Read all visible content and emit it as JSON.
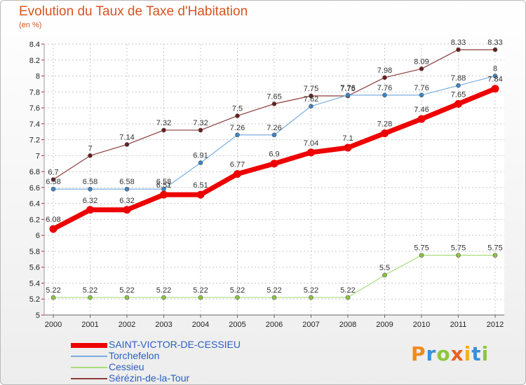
{
  "title": "Evolution du Taux de Taxe d'Habitation",
  "unit": "(en %)",
  "brand": {
    "letters": [
      "P",
      "r",
      "o",
      "x",
      "i",
      "t",
      "i"
    ],
    "colors": [
      "#f08a1c",
      "#3d8fd6",
      "#8cc63f",
      "#e8621d",
      "#f2b21c",
      "#3d8fd6",
      "#8cc63f"
    ]
  },
  "chart_data": {
    "type": "line",
    "x": [
      2000,
      2001,
      2002,
      2003,
      2004,
      2005,
      2006,
      2007,
      2008,
      2009,
      2010,
      2011,
      2012
    ],
    "ylim": [
      5,
      8.4
    ],
    "yticks": [
      5,
      5.2,
      5.4,
      5.6,
      5.8,
      6,
      6.2,
      6.4,
      6.6,
      6.8,
      7,
      7.2,
      7.4,
      7.6,
      7.8,
      8,
      8.2,
      8.4
    ],
    "grid": true,
    "legend": "bottom-left",
    "series": [
      {
        "name": "Sérézin-de-la-Tour",
        "color": "#8c3b3b",
        "marker": "#6b1e1e",
        "width": 1.2,
        "values": [
          6.7,
          7,
          7.14,
          7.32,
          7.32,
          7.5,
          7.65,
          7.75,
          7.75,
          7.98,
          8.09,
          8.33,
          8.33
        ],
        "labels": [
          "6.7",
          "7",
          "7.14",
          "7.32",
          "7.32",
          "7.5",
          "7.65",
          "7.75",
          "7.75",
          "7.98",
          "8.09",
          "8.33",
          "8.33"
        ]
      },
      {
        "name": "Torchefelon",
        "color": "#7aaee0",
        "marker": "#3d85c6",
        "width": 1.2,
        "values": [
          6.58,
          6.58,
          6.58,
          6.58,
          6.91,
          7.26,
          7.26,
          7.62,
          7.76,
          7.76,
          7.76,
          7.88,
          8
        ],
        "labels": [
          "6.58",
          "6.58",
          "6.58",
          "6.58",
          "6.91",
          "7.26",
          "7.26",
          "7.62",
          "7.76",
          "7.76",
          "7.76",
          "7.88",
          "8"
        ]
      },
      {
        "name": "Cessieu",
        "color": "#a8dc7a",
        "marker": "#8cc63f",
        "width": 1.2,
        "values": [
          5.22,
          5.22,
          5.22,
          5.22,
          5.22,
          5.22,
          5.22,
          5.22,
          5.22,
          5.5,
          5.75,
          5.75,
          5.75
        ],
        "labels": [
          "5.22",
          "5.22",
          "5.22",
          "5.22",
          "5.22",
          "5.22",
          "5.22",
          "5.22",
          "5.22",
          "5.5",
          "5.75",
          "5.75",
          "5.75"
        ]
      },
      {
        "name": "SAINT-VICTOR-DE-CESSIEU",
        "color": "#ee0000",
        "marker": "#ee0000",
        "width": 7,
        "values": [
          6.08,
          6.32,
          6.32,
          6.51,
          6.51,
          6.77,
          6.9,
          7.04,
          7.1,
          7.28,
          7.46,
          7.65,
          7.84
        ],
        "labels": [
          "6.08",
          "6.32",
          "6.32",
          "6.51",
          "6.51",
          "6.77",
          "6.9",
          "7.04",
          "7.1",
          "7.28",
          "7.46",
          "7.65",
          "7.84"
        ]
      }
    ]
  },
  "legend": [
    {
      "name": "SAINT-VICTOR-DE-CESSIEU",
      "color": "#ee0000",
      "width": 7
    },
    {
      "name": "Torchefelon",
      "color": "#7aaee0",
      "width": 2
    },
    {
      "name": "Cessieu",
      "color": "#a8dc7a",
      "width": 2
    },
    {
      "name": "Sérézin-de-la-Tour",
      "color": "#8c3b3b",
      "width": 2
    }
  ]
}
